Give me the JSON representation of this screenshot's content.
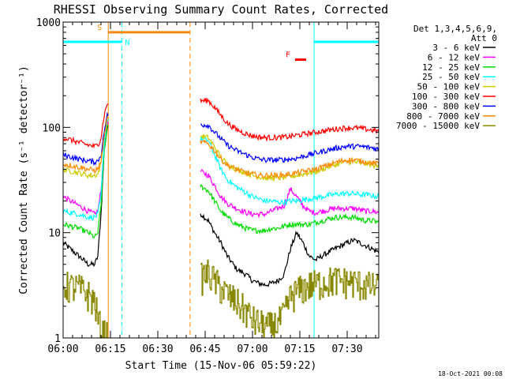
{
  "chart_data": {
    "type": "line",
    "title": "RHESSI Observing Summary Count Rates, Corrected",
    "xlabel": "Start Time (15-Nov-06 05:59:22)",
    "ylabel": "Corrected Count Rate (s⁻¹ detector⁻¹)",
    "xlim": [
      0,
      100
    ],
    "ylim": [
      1,
      1000
    ],
    "yscale": "log",
    "x_ticks": [
      {
        "t": 0,
        "label": "06:00"
      },
      {
        "t": 15,
        "label": "06:15"
      },
      {
        "t": 30,
        "label": "06:30"
      },
      {
        "t": 45,
        "label": "06:45"
      },
      {
        "t": 60,
        "label": "07:00"
      },
      {
        "t": 75,
        "label": "07:15"
      },
      {
        "t": 90,
        "label": "07:30"
      }
    ],
    "y_ticks": [
      {
        "v": 1,
        "label": "1"
      },
      {
        "v": 10,
        "label": "10"
      },
      {
        "v": 100,
        "label": "100"
      },
      {
        "v": 1000,
        "label": "1000"
      }
    ],
    "legend_header": [
      "Det 1,3,4,5,6,9,",
      "Att 0"
    ],
    "legend_placement": "right",
    "footer": "18-Oct-2021 00:08",
    "series": [
      {
        "name": "3 - 6 keV",
        "color": "#000000",
        "x": [
          0,
          5,
          8,
          10,
          11,
          12,
          13,
          14,
          46,
          48,
          50,
          52,
          55,
          58,
          60,
          62,
          64,
          66,
          68,
          70,
          72,
          74,
          76,
          78,
          80,
          82,
          84,
          86,
          88,
          90,
          92,
          94,
          96,
          98,
          100
        ],
        "y": [
          8,
          6,
          5,
          5,
          6,
          15,
          60,
          100,
          13,
          10,
          8,
          6,
          4.5,
          4,
          3.5,
          3.3,
          3.2,
          3.3,
          3.5,
          4,
          7,
          10,
          8,
          6,
          5.5,
          6,
          6.5,
          7,
          7.5,
          8,
          8.5,
          8,
          7.5,
          7,
          6.5
        ]
      },
      {
        "name": "6 - 12 keV",
        "color": "#ff00ff",
        "x": [
          0,
          5,
          8,
          10,
          11,
          12,
          13,
          14,
          46,
          48,
          50,
          52,
          55,
          58,
          60,
          62,
          64,
          66,
          68,
          70,
          72,
          74,
          76,
          78,
          80,
          82,
          84,
          86,
          88,
          90,
          92,
          94,
          96,
          98,
          100
        ],
        "y": [
          22,
          18,
          16,
          15,
          16,
          25,
          70,
          110,
          35,
          28,
          22,
          19,
          17,
          15.5,
          15,
          15,
          15,
          16,
          17,
          18,
          26,
          22,
          18,
          16,
          15.5,
          16,
          16.5,
          17,
          17,
          17,
          17,
          16.5,
          16,
          16,
          15.5
        ]
      },
      {
        "name": "12 - 25 keV",
        "color": "#00dd00",
        "x": [
          0,
          5,
          8,
          10,
          11,
          12,
          13,
          14,
          46,
          48,
          50,
          52,
          55,
          58,
          60,
          62,
          64,
          66,
          68,
          70,
          72,
          74,
          76,
          78,
          80,
          82,
          84,
          86,
          88,
          90,
          92,
          94,
          96,
          98,
          100
        ],
        "y": [
          12,
          11,
          10,
          9,
          10,
          18,
          60,
          100,
          25,
          20,
          16,
          14,
          12,
          11,
          10.5,
          10.5,
          10.5,
          11,
          11,
          11.5,
          12,
          12,
          12,
          12,
          12.5,
          13,
          13.5,
          14,
          14,
          14,
          14,
          13.5,
          13,
          13,
          12.5
        ]
      },
      {
        "name": "25 - 50 keV",
        "color": "#00ffff",
        "x": [
          0,
          5,
          8,
          10,
          11,
          12,
          13,
          14,
          46,
          48,
          50,
          52,
          55,
          58,
          60,
          62,
          64,
          66,
          68,
          70,
          72,
          74,
          76,
          78,
          80,
          82,
          84,
          86,
          88,
          90,
          92,
          94,
          96,
          98,
          100
        ],
        "y": [
          16,
          15,
          14,
          14,
          15,
          22,
          70,
          120,
          75,
          55,
          40,
          32,
          27,
          24,
          22,
          21,
          20,
          20,
          19.5,
          19.5,
          20,
          20,
          20.5,
          21,
          21.5,
          22,
          22.5,
          23,
          23.5,
          23.5,
          23.5,
          23,
          23,
          22.5,
          22
        ]
      },
      {
        "name": "50 - 100 keV",
        "color": "#cccc00",
        "x": [
          0,
          5,
          8,
          10,
          11,
          12,
          13,
          14,
          46,
          48,
          50,
          52,
          55,
          58,
          60,
          62,
          64,
          66,
          68,
          70,
          72,
          74,
          76,
          78,
          80,
          82,
          84,
          86,
          88,
          90,
          92,
          94,
          96,
          98,
          100
        ],
        "y": [
          40,
          37,
          35,
          35,
          36,
          45,
          90,
          130,
          80,
          65,
          52,
          45,
          40,
          37,
          35,
          34,
          33,
          33,
          33,
          33.5,
          34,
          35,
          36,
          37,
          38,
          40,
          42,
          44,
          46,
          47,
          47,
          46,
          45,
          44,
          42
        ]
      },
      {
        "name": "100 - 300 keV",
        "color": "#ff0000",
        "x": [
          0,
          5,
          8,
          10,
          11,
          12,
          13,
          14,
          46,
          48,
          50,
          52,
          55,
          58,
          60,
          62,
          64,
          66,
          68,
          70,
          72,
          74,
          76,
          78,
          80,
          82,
          84,
          86,
          88,
          90,
          92,
          94,
          96,
          98,
          100
        ],
        "y": [
          80,
          72,
          68,
          66,
          68,
          80,
          130,
          170,
          180,
          155,
          130,
          110,
          95,
          87,
          83,
          81,
          80,
          80,
          80,
          81,
          82,
          84,
          86,
          88,
          90,
          92,
          94,
          96,
          98,
          99,
          99,
          98,
          96,
          94,
          92
        ]
      },
      {
        "name": "300 - 800 keV",
        "color": "#0000ff",
        "x": [
          0,
          5,
          8,
          10,
          11,
          12,
          13,
          14,
          46,
          48,
          50,
          52,
          55,
          58,
          60,
          62,
          64,
          66,
          68,
          70,
          72,
          74,
          76,
          78,
          80,
          82,
          84,
          86,
          88,
          90,
          92,
          94,
          96,
          98,
          100
        ],
        "y": [
          55,
          50,
          48,
          47,
          48,
          55,
          90,
          130,
          105,
          90,
          78,
          68,
          60,
          55,
          52,
          50,
          49,
          49,
          49,
          49.5,
          50,
          51,
          53,
          55,
          57,
          59,
          61,
          63,
          65,
          66,
          66,
          66,
          65,
          64,
          62
        ]
      },
      {
        "name": "800 - 7000 keV",
        "color": "#ff8800",
        "x": [
          0,
          5,
          8,
          10,
          11,
          12,
          13,
          14,
          46,
          48,
          50,
          52,
          55,
          58,
          60,
          62,
          64,
          66,
          68,
          70,
          72,
          74,
          76,
          78,
          80,
          82,
          84,
          86,
          88,
          90,
          92,
          94,
          96,
          98,
          100
        ],
        "y": [
          45,
          42,
          40,
          39,
          40,
          48,
          80,
          120,
          70,
          60,
          50,
          44,
          40,
          37,
          36,
          35,
          35,
          35,
          35,
          35.5,
          36,
          37,
          38,
          39,
          40,
          42,
          44,
          46,
          48,
          49,
          49,
          48,
          47,
          46,
          45
        ]
      },
      {
        "name": "7000 - 15000 keV",
        "color": "#888800",
        "x": [
          0,
          5,
          8,
          10,
          11,
          12,
          13,
          14,
          46,
          48,
          50,
          52,
          55,
          58,
          60,
          62,
          64,
          66,
          68,
          70,
          72,
          74,
          76,
          78,
          80,
          82,
          84,
          86,
          88,
          90,
          92,
          94,
          96,
          98,
          100
        ],
        "y": [
          3.2,
          3,
          2.6,
          2.2,
          1.5,
          1.2,
          1.1,
          1.1,
          4.2,
          3.5,
          3,
          2.6,
          2.2,
          1.8,
          1.5,
          1.4,
          1.3,
          1.3,
          1.4,
          1.7,
          2.5,
          2.8,
          3,
          3.2,
          3.3,
          3.4,
          3.5,
          3.6,
          3.5,
          3.5,
          3.4,
          3.3,
          3.2,
          3.1,
          3
        ]
      }
    ],
    "annotations": [
      {
        "label": "S",
        "color": "#ff8800",
        "x0": 14.3,
        "x1": 40.2,
        "y": 800
      },
      {
        "label": "N",
        "color": "#00ffff",
        "x0": 0,
        "x1": 18.6,
        "y": 650
      },
      {
        "label": "F",
        "color": "#ff0000",
        "x0": 73.5,
        "x1": 77,
        "y": 440
      },
      {
        "label": "",
        "color": "#00ffff",
        "x0": 79.5,
        "x1": 100,
        "y": 650
      }
    ],
    "vertical_markers": [
      {
        "x": 0,
        "color": "#00ffff",
        "style": "solid"
      },
      {
        "x": 14.3,
        "color": "#ff8800",
        "style": "solid"
      },
      {
        "x": 18.6,
        "color": "#00ffff",
        "style": "dashed"
      },
      {
        "x": 40.2,
        "color": "#ff8800",
        "style": "dashed"
      },
      {
        "x": 79.5,
        "color": "#00ffff",
        "style": "solid"
      },
      {
        "x": 100,
        "color": "#00ffff",
        "style": "dashed"
      }
    ],
    "data_gaps": [
      [
        14.3,
        43.5
      ]
    ]
  }
}
